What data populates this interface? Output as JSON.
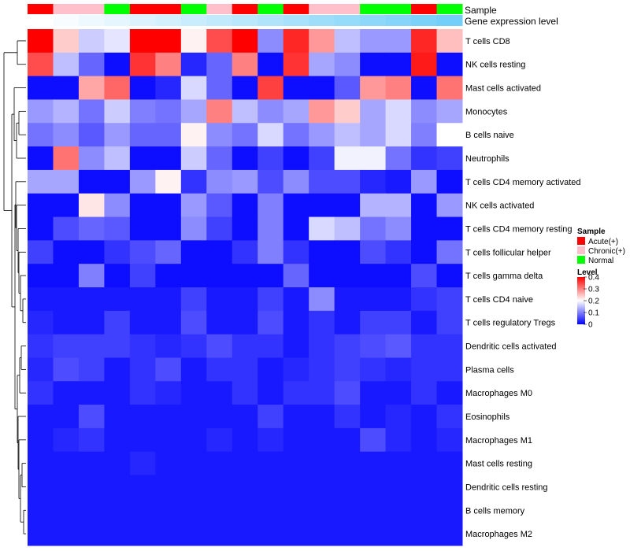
{
  "chart_data": {
    "type": "heatmap",
    "annotation_labels": {
      "sample": "Sample",
      "expression": "Gene expression level"
    },
    "samples": [
      "Acute(+)",
      "Chronic(+)",
      "Chronic(+)",
      "Normal",
      "Acute(+)",
      "Acute(+)",
      "Normal",
      "Chronic(+)",
      "Acute(+)",
      "Normal",
      "Acute(+)",
      "Chronic(+)",
      "Chronic(+)",
      "Normal",
      "Normal",
      "Acute(+)",
      "Normal"
    ],
    "expression_level": [
      0.0,
      0.05,
      0.1,
      0.15,
      0.2,
      0.25,
      0.3,
      0.35,
      0.4,
      0.45,
      0.5,
      0.55,
      0.6,
      0.65,
      0.7,
      0.75,
      0.8
    ],
    "rows": [
      "T cells CD8",
      "NK cells resting",
      "Mast cells activated",
      "Monocytes",
      "B cells naive",
      "Neutrophils",
      "T cells CD4 memory activated",
      "NK cells activated",
      "T cells CD4 memory resting",
      "T cells follicular helper",
      "T cells gamma delta",
      "T cells CD4 naive",
      "T cells regulatory  Tregs",
      "Dendritic cells activated",
      "Plasma cells",
      "Macrophages M0",
      "Eosinophils",
      "Macrophages M1",
      "Mast cells resting",
      "Dendritic cells resting",
      "B cells memory",
      "Macrophages M2"
    ],
    "values": [
      [
        0.4,
        0.24,
        0.16,
        0.18,
        0.4,
        0.4,
        0.21,
        0.34,
        0.4,
        0.11,
        0.37,
        0.28,
        0.15,
        0.12,
        0.12,
        0.37,
        0.25
      ],
      [
        0.34,
        0.15,
        0.08,
        0.01,
        0.36,
        0.3,
        0.03,
        0.08,
        0.3,
        0.01,
        0.36,
        0.13,
        0.11,
        0.01,
        0.01,
        0.38,
        0.01
      ],
      [
        0.01,
        0.01,
        0.27,
        0.32,
        0.01,
        0.03,
        0.17,
        0.08,
        0.01,
        0.35,
        0.01,
        0.01,
        0.07,
        0.28,
        0.3,
        0.01,
        0.31
      ],
      [
        0.12,
        0.14,
        0.09,
        0.16,
        0.1,
        0.09,
        0.13,
        0.3,
        0.15,
        0.11,
        0.13,
        0.28,
        0.24,
        0.13,
        0.17,
        0.11,
        0.13
      ],
      [
        0.09,
        0.11,
        0.07,
        0.12,
        0.08,
        0.08,
        0.21,
        0.11,
        0.09,
        0.17,
        0.09,
        0.12,
        0.15,
        0.13,
        0.17,
        0.1,
        0.2
      ],
      [
        0.01,
        0.31,
        0.11,
        0.15,
        0.01,
        0.01,
        0.16,
        0.08,
        0.01,
        0.05,
        0.01,
        0.05,
        0.19,
        0.19,
        0.09,
        0.04,
        0.05
      ],
      [
        0.13,
        0.13,
        0.01,
        0.01,
        0.12,
        0.21,
        0.04,
        0.11,
        0.12,
        0.06,
        0.11,
        0.06,
        0.06,
        0.03,
        0.02,
        0.12,
        0.01
      ],
      [
        0.01,
        0.01,
        0.22,
        0.11,
        0.01,
        0.01,
        0.12,
        0.07,
        0.01,
        0.1,
        0.01,
        0.01,
        0.01,
        0.14,
        0.14,
        0.01,
        0.12
      ],
      [
        0.01,
        0.06,
        0.08,
        0.07,
        0.01,
        0.01,
        0.11,
        0.05,
        0.01,
        0.1,
        0.01,
        0.17,
        0.15,
        0.09,
        0.11,
        0.01,
        0.01
      ],
      [
        0.05,
        0.01,
        0.01,
        0.04,
        0.06,
        0.08,
        0.01,
        0.01,
        0.04,
        0.1,
        0.04,
        0.01,
        0.01,
        0.06,
        0.04,
        0.01,
        0.09
      ],
      [
        0.01,
        0.01,
        0.1,
        0.01,
        0.05,
        0.01,
        0.01,
        0.01,
        0.01,
        0.01,
        0.08,
        0.01,
        0.01,
        0.01,
        0.01,
        0.06,
        0.01
      ],
      [
        0.02,
        0.02,
        0.02,
        0.02,
        0.02,
        0.02,
        0.05,
        0.02,
        0.02,
        0.05,
        0.02,
        0.11,
        0.02,
        0.02,
        0.02,
        0.04,
        0.05
      ],
      [
        0.03,
        0.02,
        0.02,
        0.05,
        0.02,
        0.02,
        0.06,
        0.02,
        0.02,
        0.06,
        0.02,
        0.04,
        0.02,
        0.05,
        0.05,
        0.02,
        0.05
      ],
      [
        0.04,
        0.05,
        0.05,
        0.05,
        0.04,
        0.03,
        0.04,
        0.06,
        0.04,
        0.04,
        0.02,
        0.04,
        0.05,
        0.06,
        0.07,
        0.04,
        0.04
      ],
      [
        0.03,
        0.06,
        0.05,
        0.02,
        0.04,
        0.06,
        0.02,
        0.04,
        0.04,
        0.02,
        0.03,
        0.04,
        0.05,
        0.04,
        0.03,
        0.04,
        0.04
      ],
      [
        0.04,
        0.02,
        0.02,
        0.02,
        0.04,
        0.03,
        0.02,
        0.02,
        0.04,
        0.02,
        0.04,
        0.04,
        0.06,
        0.02,
        0.02,
        0.04,
        0.02
      ],
      [
        0.02,
        0.02,
        0.06,
        0.02,
        0.02,
        0.02,
        0.02,
        0.02,
        0.02,
        0.05,
        0.02,
        0.02,
        0.04,
        0.02,
        0.03,
        0.02,
        0.04
      ],
      [
        0.02,
        0.03,
        0.04,
        0.02,
        0.02,
        0.02,
        0.02,
        0.03,
        0.02,
        0.03,
        0.02,
        0.02,
        0.02,
        0.06,
        0.03,
        0.02,
        0.03
      ],
      [
        0.02,
        0.02,
        0.02,
        0.02,
        0.03,
        0.02,
        0.02,
        0.02,
        0.02,
        0.02,
        0.02,
        0.02,
        0.02,
        0.02,
        0.02,
        0.02,
        0.02
      ],
      [
        0.02,
        0.02,
        0.02,
        0.02,
        0.02,
        0.02,
        0.02,
        0.02,
        0.02,
        0.02,
        0.02,
        0.02,
        0.02,
        0.02,
        0.02,
        0.02,
        0.02
      ],
      [
        0.02,
        0.02,
        0.02,
        0.02,
        0.02,
        0.02,
        0.02,
        0.02,
        0.02,
        0.02,
        0.02,
        0.02,
        0.02,
        0.02,
        0.02,
        0.02,
        0.02
      ],
      [
        0.02,
        0.02,
        0.02,
        0.02,
        0.02,
        0.02,
        0.02,
        0.02,
        0.02,
        0.02,
        0.02,
        0.02,
        0.02,
        0.02,
        0.02,
        0.02,
        0.02
      ]
    ],
    "legend_sample": {
      "title": "Sample",
      "items": [
        {
          "label": "Acute(+)",
          "color": "#ff0000"
        },
        {
          "label": "Chronic(+)",
          "color": "#ffc0cb"
        },
        {
          "label": "Normal",
          "color": "#00ff00"
        }
      ]
    },
    "legend_level": {
      "title": "Level",
      "ticks": [
        "0.4",
        "0.3",
        "0.2",
        "0.1",
        "0"
      ],
      "tick_values": [
        0.4,
        0.3,
        0.2,
        0.1,
        0.0
      ],
      "range": [
        0,
        0.4
      ]
    },
    "color_scale": {
      "low": "#0000ff",
      "mid": "#ffffff",
      "high": "#ff0000",
      "midpoint": 0.2
    },
    "expression_scale": {
      "low": "#ffffff",
      "high": "#4fc3f7"
    }
  }
}
